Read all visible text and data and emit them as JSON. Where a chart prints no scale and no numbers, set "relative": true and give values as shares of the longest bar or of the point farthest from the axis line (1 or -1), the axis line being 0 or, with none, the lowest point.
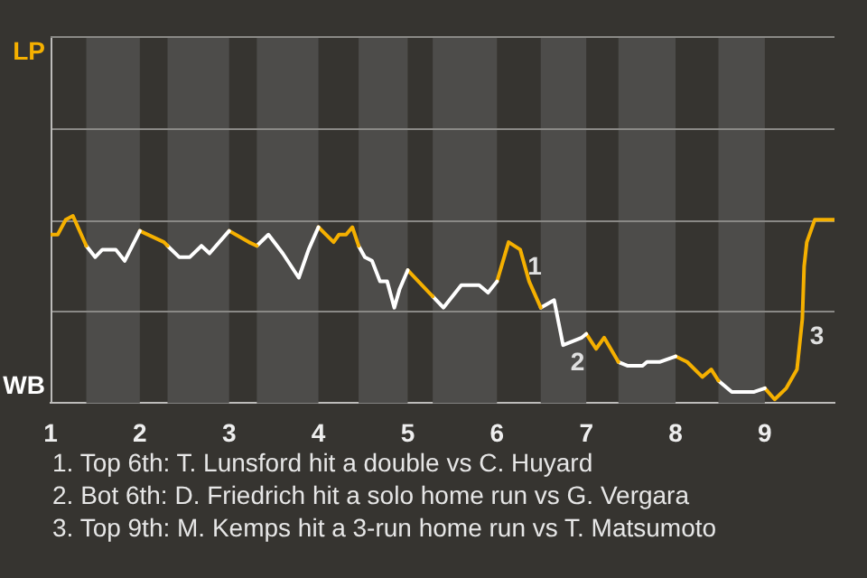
{
  "chart_data": {
    "type": "line",
    "relative": true,
    "xlim": [
      1,
      9.78
    ],
    "xticks": [
      1,
      2,
      3,
      4,
      5,
      6,
      7,
      8,
      9
    ],
    "series": [
      {
        "name": "LP",
        "color": "#f5b000",
        "x": [
          1,
          1.08,
          1.17,
          1.25,
          1.4
        ],
        "values": [
          0.9,
          0.9,
          0.98,
          1,
          0.84
        ]
      },
      {
        "name": "WB",
        "color": "#ffffff",
        "x": [
          1.4,
          1.5,
          1.58,
          1.73,
          1.83,
          2
        ],
        "values": [
          0.84,
          0.78,
          0.82,
          0.82,
          0.76,
          0.92
        ]
      },
      {
        "color": "#f5b000",
        "x": [
          2,
          2.27,
          2.31
        ],
        "values": [
          0.92,
          0.86,
          0.84
        ]
      },
      {
        "color": "#ffffff",
        "x": [
          2.31,
          2.44,
          2.56,
          2.69,
          2.78,
          3
        ],
        "values": [
          0.84,
          0.78,
          0.78,
          0.84,
          0.8,
          0.92
        ]
      },
      {
        "color": "#f5b000",
        "x": [
          3,
          3.22,
          3.31
        ],
        "values": [
          0.92,
          0.86,
          0.84
        ]
      },
      {
        "color": "#ffffff",
        "x": [
          3.31,
          3.44,
          3.6,
          3.78,
          3.89,
          4
        ],
        "values": [
          0.84,
          0.9,
          0.8,
          0.67,
          0.82,
          0.94
        ]
      },
      {
        "color": "#f5b000",
        "x": [
          4,
          4.17,
          4.23,
          4.31,
          4.38,
          4.45
        ],
        "values": [
          0.94,
          0.86,
          0.9,
          0.9,
          0.94,
          0.84
        ]
      },
      {
        "color": "#ffffff",
        "x": [
          4.45,
          4.52,
          4.6,
          4.69,
          4.77,
          4.85,
          4.91,
          5
        ],
        "values": [
          0.84,
          0.78,
          0.76,
          0.65,
          0.65,
          0.51,
          0.61,
          0.71
        ]
      },
      {
        "color": "#f5b000",
        "x": [
          5,
          5.24,
          5.28
        ],
        "values": [
          0.71,
          0.59,
          0.57
        ]
      },
      {
        "color": "#ffffff",
        "x": [
          5.28,
          5.4,
          5.6,
          5.8,
          5.9,
          6
        ],
        "values": [
          0.57,
          0.51,
          0.63,
          0.63,
          0.59,
          0.65
        ]
      },
      {
        "color": "#f5b000",
        "x": [
          6,
          6.13,
          6.26,
          6.36,
          6.49
        ],
        "values": [
          0.65,
          0.86,
          0.82,
          0.65,
          0.51
        ]
      },
      {
        "color": "#ffffff",
        "x": [
          6.49,
          6.64,
          6.74,
          6.95,
          7
        ],
        "values": [
          0.51,
          0.55,
          0.31,
          0.35,
          0.37
        ]
      },
      {
        "color": "#f5b000",
        "x": [
          7,
          7.11,
          7.2,
          7.36
        ],
        "values": [
          0.37,
          0.29,
          0.35,
          0.22
        ]
      },
      {
        "color": "#ffffff",
        "x": [
          7.36,
          7.46,
          7.63,
          7.68,
          7.82,
          8
        ],
        "values": [
          0.22,
          0.2,
          0.2,
          0.22,
          0.22,
          0.25
        ]
      },
      {
        "color": "#f5b000",
        "x": [
          8,
          8.13,
          8.3,
          8.4,
          8.48
        ],
        "values": [
          0.25,
          0.22,
          0.14,
          0.18,
          0.12
        ]
      },
      {
        "color": "#ffffff",
        "x": [
          8.48,
          8.63,
          8.88,
          9
        ],
        "values": [
          0.12,
          0.06,
          0.06,
          0.08
        ]
      },
      {
        "color": "#f5b000",
        "x": [
          9,
          9.11,
          9.24,
          9.36,
          9.42,
          9.44,
          9.47,
          9.56,
          9.78
        ],
        "values": [
          0.08,
          0.02,
          0.08,
          0.18,
          0.45,
          0.73,
          0.86,
          0.98,
          0.98
        ]
      }
    ],
    "bands": [
      {
        "axis": "x",
        "from": 1.4,
        "to": 2,
        "color": "#4d4c4a"
      },
      {
        "axis": "x",
        "from": 2.31,
        "to": 3,
        "color": "#4d4c4a"
      },
      {
        "axis": "x",
        "from": 3.31,
        "to": 4,
        "color": "#4d4c4a"
      },
      {
        "axis": "x",
        "from": 4.45,
        "to": 5,
        "color": "#4d4c4a"
      },
      {
        "axis": "x",
        "from": 5.28,
        "to": 6,
        "color": "#4d4c4a"
      },
      {
        "axis": "x",
        "from": 6.49,
        "to": 7,
        "color": "#4d4c4a"
      },
      {
        "axis": "x",
        "from": 7.36,
        "to": 8,
        "color": "#4d4c4a"
      },
      {
        "axis": "x",
        "from": 8.48,
        "to": 9,
        "color": "#4d4c4a"
      }
    ],
    "ref_lines": [
      {
        "axis": "y",
        "value": 0.49,
        "color": "#8a8986"
      },
      {
        "axis": "y",
        "value": 0.98,
        "color": "#8a8986"
      },
      {
        "axis": "y",
        "value": 1.47,
        "color": "#8a8986"
      }
    ],
    "marker": "none",
    "line_style": "solid",
    "annotations": [
      {
        "text": "1",
        "x": 6.26,
        "y": 0.82
      },
      {
        "text": "2",
        "x": 6.74,
        "y": 0.31
      },
      {
        "text": "3",
        "x": 9.42,
        "y": 0.45
      },
      "1. Top 6th: T. Lunsford hit a double vs C. Huyard",
      "2. Bot 6th: D. Friedrich hit a solo home run vs G. Vergara",
      "3. Top 9th: M. Kemps hit a 3-run home run vs T. Matsumoto"
    ]
  }
}
